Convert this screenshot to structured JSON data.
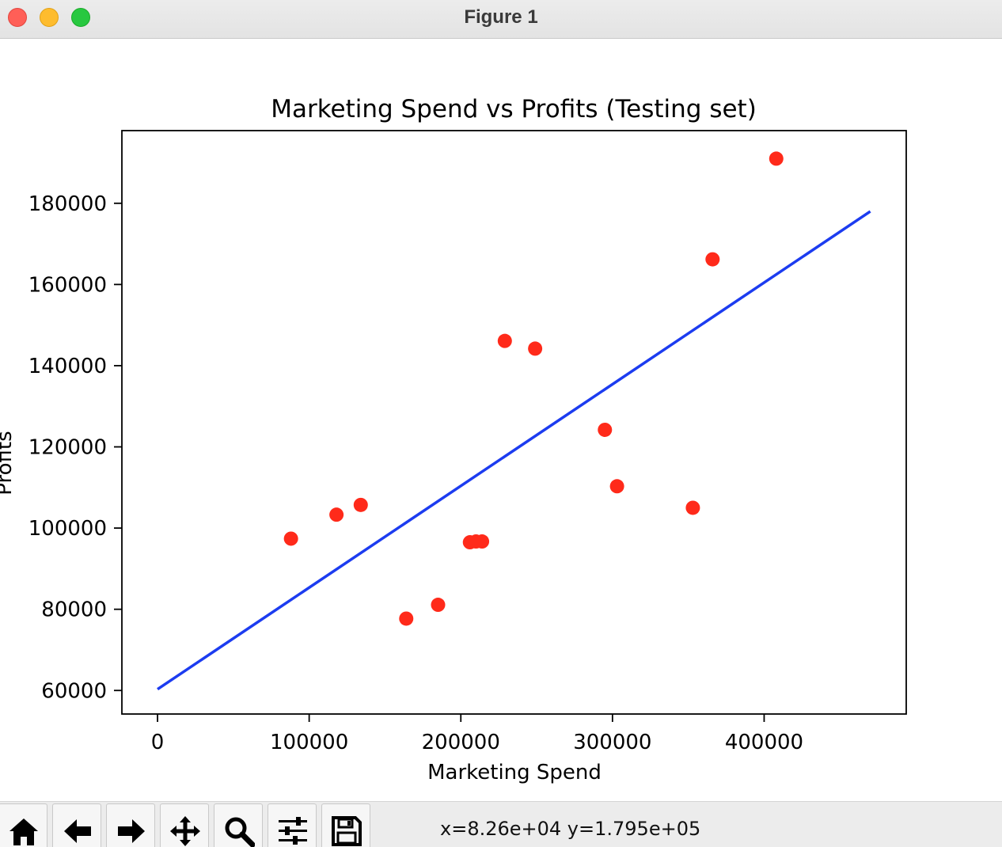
{
  "window": {
    "title": "Figure 1"
  },
  "chart_data": {
    "type": "scatter",
    "title": "Marketing Spend vs Profits (Testing set)",
    "xlabel": "Marketing Spend",
    "ylabel": "Profits",
    "xlim": [
      -23500,
      493700
    ],
    "ylim": [
      54200,
      197900
    ],
    "xticks": [
      0,
      100000,
      200000,
      300000,
      400000
    ],
    "yticks": [
      60000,
      80000,
      100000,
      120000,
      140000,
      160000,
      180000
    ],
    "grid": false,
    "legend": "none",
    "series": [
      {
        "kind": "scatter",
        "color": "#ff2a1a",
        "points": [
          [
            88000,
            97400
          ],
          [
            118000,
            103300
          ],
          [
            134000,
            105700
          ],
          [
            164000,
            77700
          ],
          [
            185000,
            81100
          ],
          [
            206000,
            96500
          ],
          [
            210000,
            96700
          ],
          [
            214000,
            96700
          ],
          [
            229000,
            146100
          ],
          [
            249000,
            144200
          ],
          [
            295000,
            124200
          ],
          [
            303000,
            110300
          ],
          [
            353000,
            105000
          ],
          [
            366000,
            166200
          ],
          [
            408000,
            191000
          ]
        ]
      },
      {
        "kind": "line",
        "color": "#1c3cf0",
        "points": [
          [
            0,
            60300
          ],
          [
            470000,
            178000
          ]
        ]
      }
    ]
  },
  "toolbar": {
    "buttons": [
      {
        "name": "home-icon",
        "label": "Home"
      },
      {
        "name": "back-arrow-icon",
        "label": "Back"
      },
      {
        "name": "forward-arrow-icon",
        "label": "Forward"
      },
      {
        "name": "pan-icon",
        "label": "Pan"
      },
      {
        "name": "zoom-icon",
        "label": "Zoom"
      },
      {
        "name": "configure-subplots-icon",
        "label": "Subplots"
      },
      {
        "name": "save-icon",
        "label": "Save"
      }
    ],
    "coords": "x=8.26e+04 y=1.795e+05"
  }
}
